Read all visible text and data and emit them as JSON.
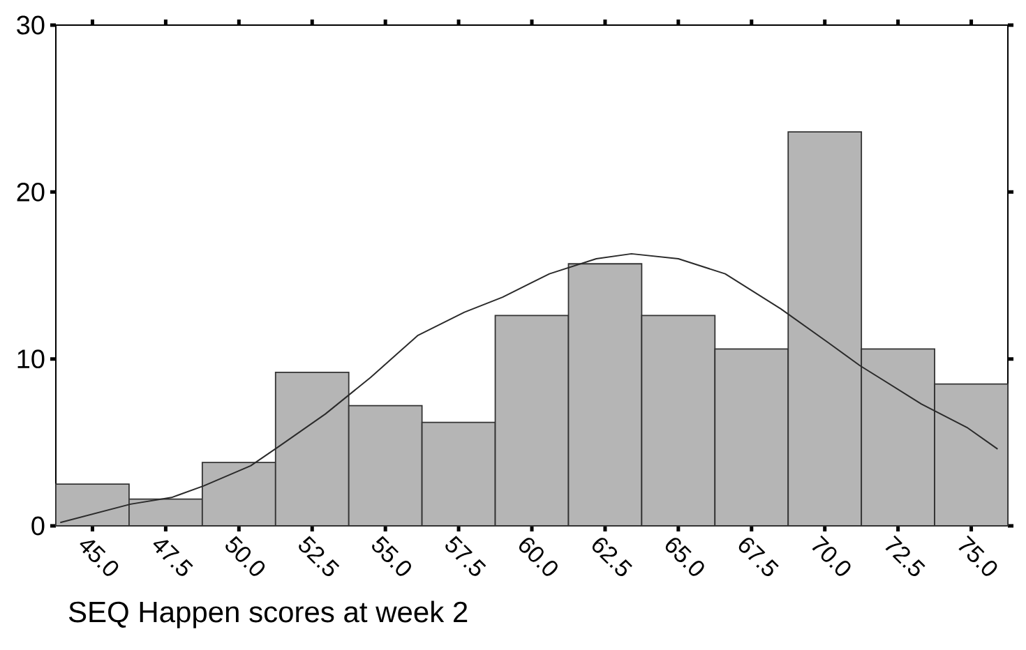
{
  "chart_data": {
    "type": "histogram",
    "xlabel": "SEQ Happen scores at week 2",
    "bins": [
      43.75,
      46.25,
      48.75,
      51.25,
      53.75,
      56.25,
      58.75,
      61.25,
      63.75,
      66.25,
      68.75,
      71.25,
      73.75,
      76.25
    ],
    "values": [
      2.5,
      1.6,
      3.8,
      9.2,
      7.2,
      6.2,
      12.6,
      15.7,
      12.6,
      10.6,
      23.6,
      10.6,
      8.5
    ],
    "color": "#b5b5b5",
    "series": [
      {
        "type": "line",
        "color": "#2a2a2a",
        "x": [
          43.9,
          46.3,
          47.7,
          48.8,
          50.4,
          51.4,
          52.95,
          54.5,
          56.1,
          57.7,
          59.0,
          60.6,
          62.2,
          63.4,
          65.0,
          66.6,
          68.5,
          70.1,
          71.2,
          73.3,
          74.85,
          75.9
        ],
        "values": [
          0.2,
          1.3,
          1.7,
          2.4,
          3.6,
          4.8,
          6.7,
          8.9,
          11.4,
          12.8,
          13.7,
          15.1,
          16.0,
          16.3,
          16.0,
          15.1,
          13.0,
          11.0,
          9.6,
          7.3,
          5.9,
          4.6
        ]
      }
    ],
    "xlim": [
      43.75,
      76.25
    ],
    "ylim": [
      0,
      30
    ],
    "xticks": [
      {
        "value": 45,
        "label": "45.0"
      },
      {
        "value": 47.5,
        "label": "47.5"
      },
      {
        "value": 50,
        "label": "50.0"
      },
      {
        "value": 52.5,
        "label": "52.5"
      },
      {
        "value": 55,
        "label": "55.0"
      },
      {
        "value": 57.5,
        "label": "57.5"
      },
      {
        "value": 60,
        "label": "60.0"
      },
      {
        "value": 62.5,
        "label": "62.5"
      },
      {
        "value": 65,
        "label": "65.0"
      },
      {
        "value": 67.5,
        "label": "67.5"
      },
      {
        "value": 70,
        "label": "70.0"
      },
      {
        "value": 72.5,
        "label": "72.5"
      },
      {
        "value": 75,
        "label": "75.0"
      }
    ],
    "yticks": [
      0,
      10,
      20,
      30
    ]
  }
}
